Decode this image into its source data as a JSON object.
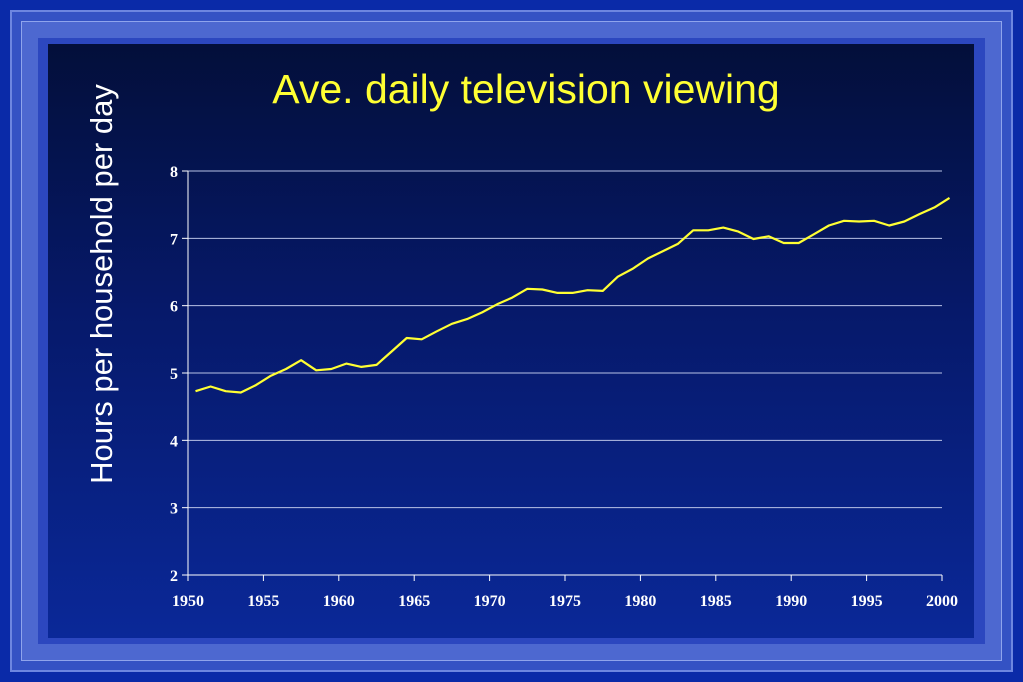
{
  "chart_data": {
    "type": "line",
    "title": "Ave. daily television viewing",
    "xlabel": "",
    "ylabel": "Hours per household per day",
    "xlim": [
      1950,
      2000
    ],
    "ylim": [
      2,
      8
    ],
    "xticks": [
      1950,
      1955,
      1960,
      1965,
      1970,
      1975,
      1980,
      1985,
      1990,
      1995,
      2000
    ],
    "yticks": [
      2,
      3,
      4,
      5,
      6,
      7,
      8
    ],
    "grid": true,
    "colors": {
      "line": "#ffff33",
      "grid": "#b8c2e6",
      "axis": "#ffffff"
    },
    "series": [
      {
        "x": [
          1950.5,
          1951.5,
          1952.5,
          1953.5,
          1954.5,
          1955.5,
          1956.5,
          1957.5,
          1958.5,
          1959.5,
          1960.5,
          1961.5,
          1962.5,
          1963.5,
          1964.5,
          1965.5,
          1966.5,
          1967.5,
          1968.5,
          1969.5,
          1970.5,
          1971.5,
          1972.5,
          1973.5,
          1974.5,
          1975.5,
          1976.5,
          1977.5,
          1978.5,
          1979.5,
          1980.5,
          1981.5,
          1982.5,
          1983.5,
          1984.5,
          1985.5,
          1986.5,
          1987.5,
          1988.5,
          1989.5,
          1990.5,
          1991.5,
          1992.5,
          1993.5,
          1994.5,
          1995.5,
          1996.5,
          1997.5,
          1998.5,
          1999.5,
          2000.5
        ],
        "y": [
          4.73,
          4.8,
          4.73,
          4.71,
          4.82,
          4.96,
          5.06,
          5.19,
          5.04,
          5.06,
          5.14,
          5.09,
          5.12,
          5.32,
          5.52,
          5.5,
          5.62,
          5.73,
          5.8,
          5.9,
          6.02,
          6.12,
          6.25,
          6.24,
          6.19,
          6.19,
          6.23,
          6.22,
          6.43,
          6.55,
          6.7,
          6.81,
          6.92,
          7.12,
          7.12,
          7.16,
          7.1,
          6.99,
          7.03,
          6.93,
          6.93,
          7.06,
          7.19,
          7.26,
          7.25,
          7.26,
          7.19,
          7.25,
          7.36,
          7.46,
          7.6
        ]
      }
    ]
  }
}
